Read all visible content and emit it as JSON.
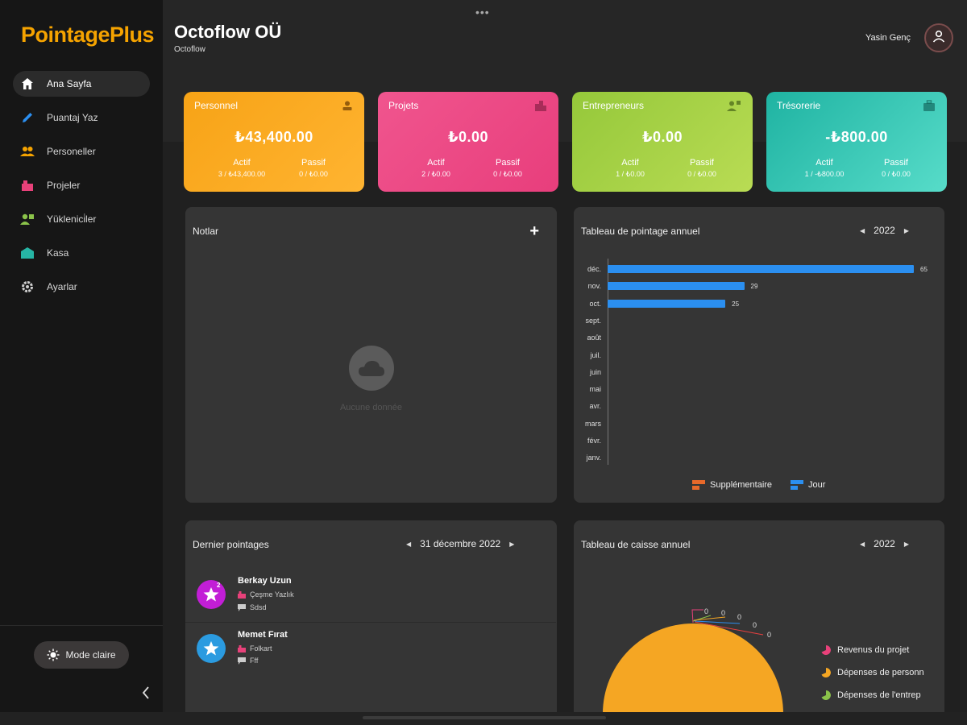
{
  "app": {
    "logo": "PointagePlus"
  },
  "sidebar": {
    "items": [
      {
        "label": "Ana Sayfa",
        "icon": "home-icon",
        "color": "#ffffff"
      },
      {
        "label": "Puantaj Yaz",
        "icon": "pencil-icon",
        "color": "#2b8ff0"
      },
      {
        "label": "Personeller",
        "icon": "people-icon",
        "color": "#f5a300"
      },
      {
        "label": "Projeler",
        "icon": "projects-icon",
        "color": "#e8417a"
      },
      {
        "label": "Yüklenici̇ler",
        "icon": "contractors-icon",
        "color": "#8bc34a"
      },
      {
        "label": "Kasa",
        "icon": "cashbox-icon",
        "color": "#26b5a5"
      },
      {
        "label": "Ayarlar",
        "icon": "gear-icon",
        "color": "#d0d0d0"
      }
    ],
    "mode_button": "Mode claire"
  },
  "header": {
    "title": "Octoflow OÜ",
    "subtitle": "Octoflow",
    "user_name": "Yasin Genç"
  },
  "cards": [
    {
      "title": "Personnel",
      "amount": "₺43,400.00",
      "left_label": "Actif",
      "left_value": "3 / ₺43,400.00",
      "right_label": "Passif",
      "right_value": "0 / ₺0.00",
      "icon": "person-icon"
    },
    {
      "title": "Projets",
      "amount": "₺0.00",
      "left_label": "Actif",
      "left_value": "2 / ₺0.00",
      "right_label": "Passif",
      "right_value": "0 / ₺0.00",
      "icon": "buildings-icon"
    },
    {
      "title": "Entrepreneurs",
      "amount": "₺0.00",
      "left_label": "Actif",
      "left_value": "1 / ₺0.00",
      "right_label": "Passif",
      "right_value": "0 / ₺0.00",
      "icon": "worker-icon"
    },
    {
      "title": "Trésorerie",
      "amount": "-₺800.00",
      "left_label": "Actif",
      "left_value": "1 / -₺800.00",
      "right_label": "Passif",
      "right_value": "0 / ₺0.00",
      "icon": "briefcase-icon"
    }
  ],
  "notes": {
    "title": "Notlar",
    "add_label": "+",
    "empty_text": "Aucune donnée"
  },
  "attendance_chart": {
    "title": "Tableau de pointage annuel",
    "year": "2022",
    "legend": [
      "Supplémentaire",
      "Jour"
    ]
  },
  "chart_data": [
    {
      "type": "bar",
      "title": "Tableau de pointage annuel",
      "orientation": "horizontal",
      "categories": [
        "déc.",
        "nov.",
        "oct.",
        "sept.",
        "août",
        "juil.",
        "juin",
        "mai",
        "avr.",
        "mars",
        "févr.",
        "janv."
      ],
      "series": [
        {
          "name": "Supplémentaire",
          "color": "#e8692a",
          "values": [
            0,
            0,
            0,
            0,
            0,
            0,
            0,
            0,
            0,
            0,
            0,
            0
          ]
        },
        {
          "name": "Jour",
          "color": "#2b8ff0",
          "values": [
            65,
            29,
            25,
            0,
            0,
            0,
            0,
            0,
            0,
            0,
            0,
            0
          ]
        }
      ],
      "xlim": [
        0,
        65
      ]
    },
    {
      "type": "pie",
      "title": "Tableau de caisse annuel",
      "labels": [
        "Revenus du projet",
        "Dépenses de personnel",
        "Dépenses de l'entrep"
      ],
      "colors": [
        "#e8417a",
        "#f5a623",
        "#8bc34a"
      ],
      "visible_value_labels": [
        "0",
        "0",
        "0",
        "0",
        "0"
      ]
    }
  ],
  "latest": {
    "title": "Dernier pointages",
    "date": "31 décembre 2022",
    "entries": [
      {
        "name": "Berkay Uzun",
        "project": "Çeşme Yazlık",
        "note": "Sdsd",
        "badge": "2",
        "color": "#c21ed6"
      },
      {
        "name": "Memet Fırat",
        "project": "Folkart",
        "note": "Fff",
        "color": "#2b9be0"
      }
    ]
  },
  "cash_chart": {
    "title": "Tableau de caisse annuel",
    "year": "2022",
    "legend": [
      "Revenus du projet",
      "Dépenses de personn",
      "Dépenses de l'entrep"
    ],
    "value_labels": [
      "0",
      "0",
      "0",
      "0",
      "0"
    ]
  }
}
